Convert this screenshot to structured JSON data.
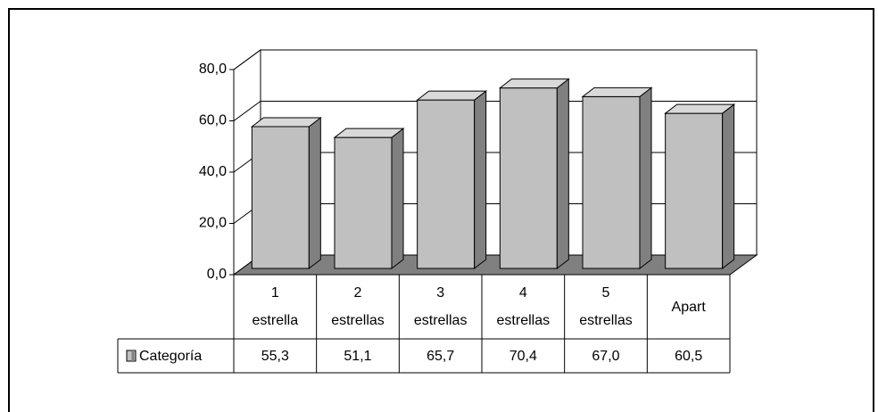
{
  "chart_data": {
    "type": "bar3d",
    "categories": [
      "1\nestrella",
      "2\nestrellas",
      "3\nestrellas",
      "4\nestrellas",
      "5\nestrellas",
      "Apart"
    ],
    "series": [
      {
        "name": "Categoría",
        "color": "#c0c0c0",
        "values": [
          55.3,
          51.1,
          65.7,
          70.4,
          67.0,
          60.5
        ],
        "value_labels": [
          "55,3",
          "51,1",
          "65,7",
          "70,4",
          "67,0",
          "60,5"
        ]
      }
    ],
    "ylim": [
      0,
      80
    ],
    "yticks": [
      {
        "value": 0,
        "label": "0,0"
      },
      {
        "value": 20,
        "label": "20,0"
      },
      {
        "value": 40,
        "label": "40,0"
      },
      {
        "value": 60,
        "label": "60,0"
      },
      {
        "value": 80,
        "label": "80,0"
      }
    ],
    "grid": true,
    "legend": "data-table"
  }
}
